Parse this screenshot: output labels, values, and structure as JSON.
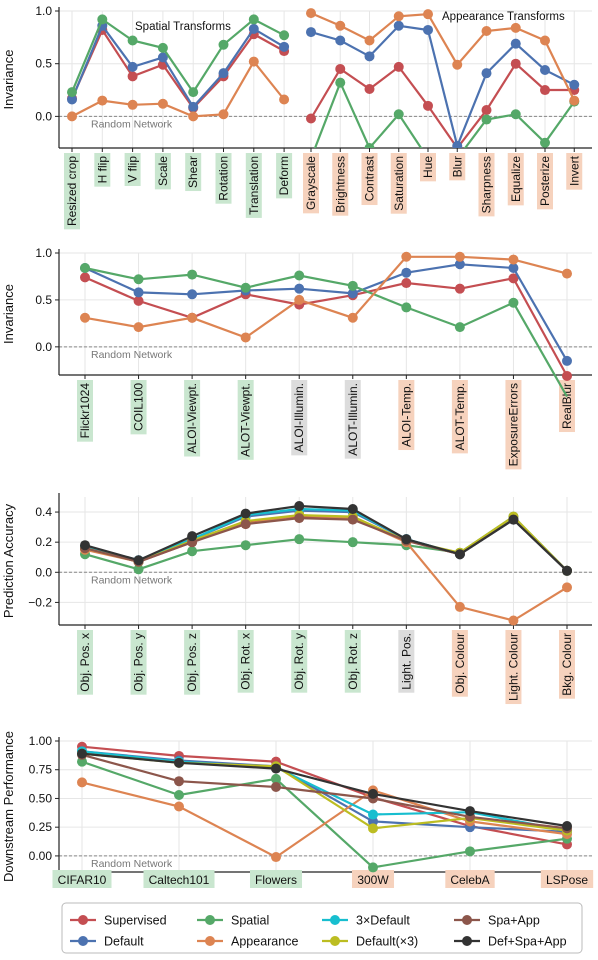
{
  "colors": {
    "Supervised": "#c44e52",
    "Default": "#4c72b0",
    "Spatial": "#55a868",
    "Appearance": "#dd8452",
    "3×Default": "#17becf",
    "Default(×3)": "#bcbd22",
    "Spa+App": "#8c564b",
    "Def+Spa+App": "#333333",
    "tag_spatial": "#c9e6cf",
    "tag_appearance": "#f6d2bd",
    "tag_other": "#dcdcdc"
  },
  "legend": {
    "placement": "bottom",
    "entries": [
      "Supervised",
      "Default",
      "Spatial",
      "Appearance",
      "3×Default",
      "Default(×3)",
      "Spa+App",
      "Def+Spa+App"
    ]
  },
  "random_network_label": "Random Network",
  "chart_data": [
    {
      "type": "line",
      "ylabel": "Invariance",
      "ylim": [
        -0.3,
        1.0
      ],
      "yticks": [
        0.0,
        0.5,
        1.0
      ],
      "ytick_labels": [
        "0.0",
        "0.5",
        "1.0"
      ],
      "annotations": [
        "Spatial Transforms",
        "Appearance Transforms"
      ],
      "groups": [
        {
          "categories": [
            "Resized crop",
            "H flip",
            "V flip",
            "Scale",
            "Shear",
            "Rotation",
            "Translation",
            "Deform"
          ],
          "category_tags": [
            "spatial",
            "spatial",
            "spatial",
            "spatial",
            "spatial",
            "spatial",
            "spatial",
            "spatial"
          ],
          "series": [
            {
              "name": "Supervised",
              "values": [
                0.17,
                0.82,
                0.38,
                0.49,
                0.08,
                0.38,
                0.78,
                0.62
              ]
            },
            {
              "name": "Default",
              "values": [
                0.16,
                0.86,
                0.47,
                0.56,
                0.09,
                0.41,
                0.83,
                0.66
              ]
            },
            {
              "name": "Spatial",
              "values": [
                0.23,
                0.92,
                0.72,
                0.65,
                0.23,
                0.68,
                0.92,
                0.77
              ]
            },
            {
              "name": "Appearance",
              "values": [
                0.0,
                0.15,
                0.11,
                0.12,
                0.0,
                0.02,
                0.52,
                0.16
              ]
            }
          ]
        },
        {
          "categories": [
            "Grayscale",
            "Brightness",
            "Contrast",
            "Saturation",
            "Hue",
            "Blur",
            "Sharpness",
            "Equalize",
            "Posterize",
            "Invert"
          ],
          "category_tags": [
            "appearance",
            "appearance",
            "appearance",
            "appearance",
            "appearance",
            "appearance",
            "appearance",
            "appearance",
            "appearance",
            "appearance"
          ],
          "series": [
            {
              "name": "Supervised",
              "values": [
                -0.02,
                0.45,
                0.26,
                0.47,
                0.1,
                -0.3,
                0.06,
                0.5,
                0.25,
                0.25
              ]
            },
            {
              "name": "Default",
              "values": [
                0.8,
                0.72,
                0.57,
                0.86,
                0.82,
                -0.28,
                0.41,
                0.69,
                0.44,
                0.3
              ]
            },
            {
              "name": "Spatial",
              "values": [
                -0.4,
                0.32,
                -0.3,
                0.02,
                -0.4,
                -0.4,
                -0.03,
                0.02,
                -0.25,
                0.14
              ]
            },
            {
              "name": "Appearance",
              "values": [
                0.98,
                0.86,
                0.72,
                0.95,
                0.97,
                0.49,
                0.81,
                0.84,
                0.72,
                0.15
              ]
            }
          ]
        }
      ]
    },
    {
      "type": "line",
      "ylabel": "Invariance",
      "ylim": [
        -0.3,
        1.0
      ],
      "yticks": [
        0.0,
        0.5,
        1.0
      ],
      "ytick_labels": [
        "0.0",
        "0.5",
        "1.0"
      ],
      "categories": [
        "Flickr1024",
        "COIL100",
        "ALOI-Viewpt.",
        "ALOT-Viewpt.",
        "ALOI-Illumin.",
        "ALOT-Illumin.",
        "ALOI-Temp.",
        "ALOT-Temp.",
        "ExposureErrors",
        "RealBlur"
      ],
      "category_tags": [
        "spatial",
        "spatial",
        "spatial",
        "spatial",
        "other",
        "other",
        "appearance",
        "appearance",
        "appearance",
        "appearance"
      ],
      "series": [
        {
          "name": "Supervised",
          "values": [
            0.74,
            0.49,
            0.31,
            0.56,
            0.45,
            0.55,
            0.68,
            0.62,
            0.73,
            -0.31
          ]
        },
        {
          "name": "Default",
          "values": [
            0.84,
            0.58,
            0.56,
            0.6,
            0.62,
            0.57,
            0.79,
            0.88,
            0.84,
            -0.15
          ]
        },
        {
          "name": "Spatial",
          "values": [
            0.84,
            0.72,
            0.77,
            0.63,
            0.76,
            0.65,
            0.42,
            0.21,
            0.47,
            -0.53
          ]
        },
        {
          "name": "Appearance",
          "values": [
            0.31,
            0.21,
            0.31,
            0.1,
            0.5,
            0.31,
            0.96,
            0.96,
            0.93,
            0.78
          ]
        }
      ]
    },
    {
      "type": "line",
      "ylabel": "Prediction Accuracy",
      "ylim": [
        -0.35,
        0.5
      ],
      "yticks": [
        -0.2,
        0.0,
        0.2,
        0.4
      ],
      "ytick_labels": [
        "−0.2",
        "0.0",
        "0.2",
        "0.4"
      ],
      "categories": [
        "Obj. Pos. x",
        "Obj. Pos. y",
        "Obj. Pos. z",
        "Obj. Rot. x",
        "Obj. Rot. y",
        "Obj. Rot. z",
        "Light. Pos.",
        "Obj. Colour",
        "Light. Colour",
        "Bkg. Colour"
      ],
      "category_tags": [
        "spatial",
        "spatial",
        "spatial",
        "spatial",
        "spatial",
        "spatial",
        "other",
        "appearance",
        "appearance",
        "appearance"
      ],
      "series": [
        {
          "name": "Supervised",
          "values": [
            0.16,
            0.07,
            0.2,
            0.33,
            0.37,
            0.36,
            0.21,
            0.12,
            0.35,
            0.01
          ]
        },
        {
          "name": "Default",
          "values": [
            0.17,
            0.08,
            0.22,
            0.37,
            0.41,
            0.4,
            0.22,
            0.12,
            0.35,
            0.01
          ]
        },
        {
          "name": "Spatial",
          "values": [
            0.12,
            0.02,
            0.14,
            0.18,
            0.22,
            0.2,
            0.18,
            0.13,
            0.37,
            0.01
          ]
        },
        {
          "name": "Appearance",
          "values": [
            0.15,
            0.07,
            0.21,
            0.32,
            0.38,
            0.36,
            0.2,
            -0.23,
            -0.32,
            -0.1
          ]
        },
        {
          "name": "3×Default",
          "values": [
            0.17,
            0.08,
            0.22,
            0.38,
            0.42,
            0.41,
            0.22,
            0.12,
            0.35,
            0.01
          ]
        },
        {
          "name": "Default(×3)",
          "values": [
            0.16,
            0.07,
            0.21,
            0.34,
            0.38,
            0.37,
            0.21,
            0.13,
            0.37,
            0.01
          ]
        },
        {
          "name": "Spa+App",
          "values": [
            0.16,
            0.07,
            0.2,
            0.32,
            0.36,
            0.35,
            0.21,
            0.12,
            0.35,
            0.01
          ]
        },
        {
          "name": "Def+Spa+App",
          "values": [
            0.18,
            0.08,
            0.24,
            0.39,
            0.44,
            0.42,
            0.22,
            0.12,
            0.35,
            0.01
          ]
        }
      ]
    },
    {
      "type": "line",
      "ylabel": "Downstream Performance",
      "ylim": [
        -0.14,
        1.0
      ],
      "yticks": [
        0.0,
        0.25,
        0.5,
        0.75,
        1.0
      ],
      "ytick_labels": [
        "0.00",
        "0.25",
        "0.50",
        "0.75",
        "1.00"
      ],
      "categories": [
        "CIFAR10",
        "Caltech101",
        "Flowers",
        "300W",
        "CelebA",
        "LSPose"
      ],
      "category_tags": [
        "spatial",
        "spatial",
        "spatial",
        "appearance",
        "appearance",
        "appearance"
      ],
      "series": [
        {
          "name": "Supervised",
          "values": [
            0.95,
            0.87,
            0.82,
            0.51,
            0.26,
            0.1
          ]
        },
        {
          "name": "Default",
          "values": [
            0.91,
            0.83,
            0.78,
            0.3,
            0.25,
            0.21
          ]
        },
        {
          "name": "Spatial",
          "values": [
            0.82,
            0.53,
            0.67,
            -0.1,
            0.04,
            0.15
          ]
        },
        {
          "name": "Appearance",
          "values": [
            0.64,
            0.43,
            -0.01,
            0.57,
            0.3,
            0.19
          ]
        },
        {
          "name": "3×Default",
          "values": [
            0.91,
            0.82,
            0.77,
            0.36,
            0.38,
            0.22
          ]
        },
        {
          "name": "Default(×3)",
          "values": [
            0.89,
            0.81,
            0.78,
            0.24,
            0.33,
            0.22
          ]
        },
        {
          "name": "Spa+App",
          "values": [
            0.88,
            0.65,
            0.6,
            0.5,
            0.34,
            0.24
          ]
        },
        {
          "name": "Def+Spa+App",
          "values": [
            0.89,
            0.81,
            0.76,
            0.54,
            0.39,
            0.26
          ]
        }
      ]
    }
  ]
}
